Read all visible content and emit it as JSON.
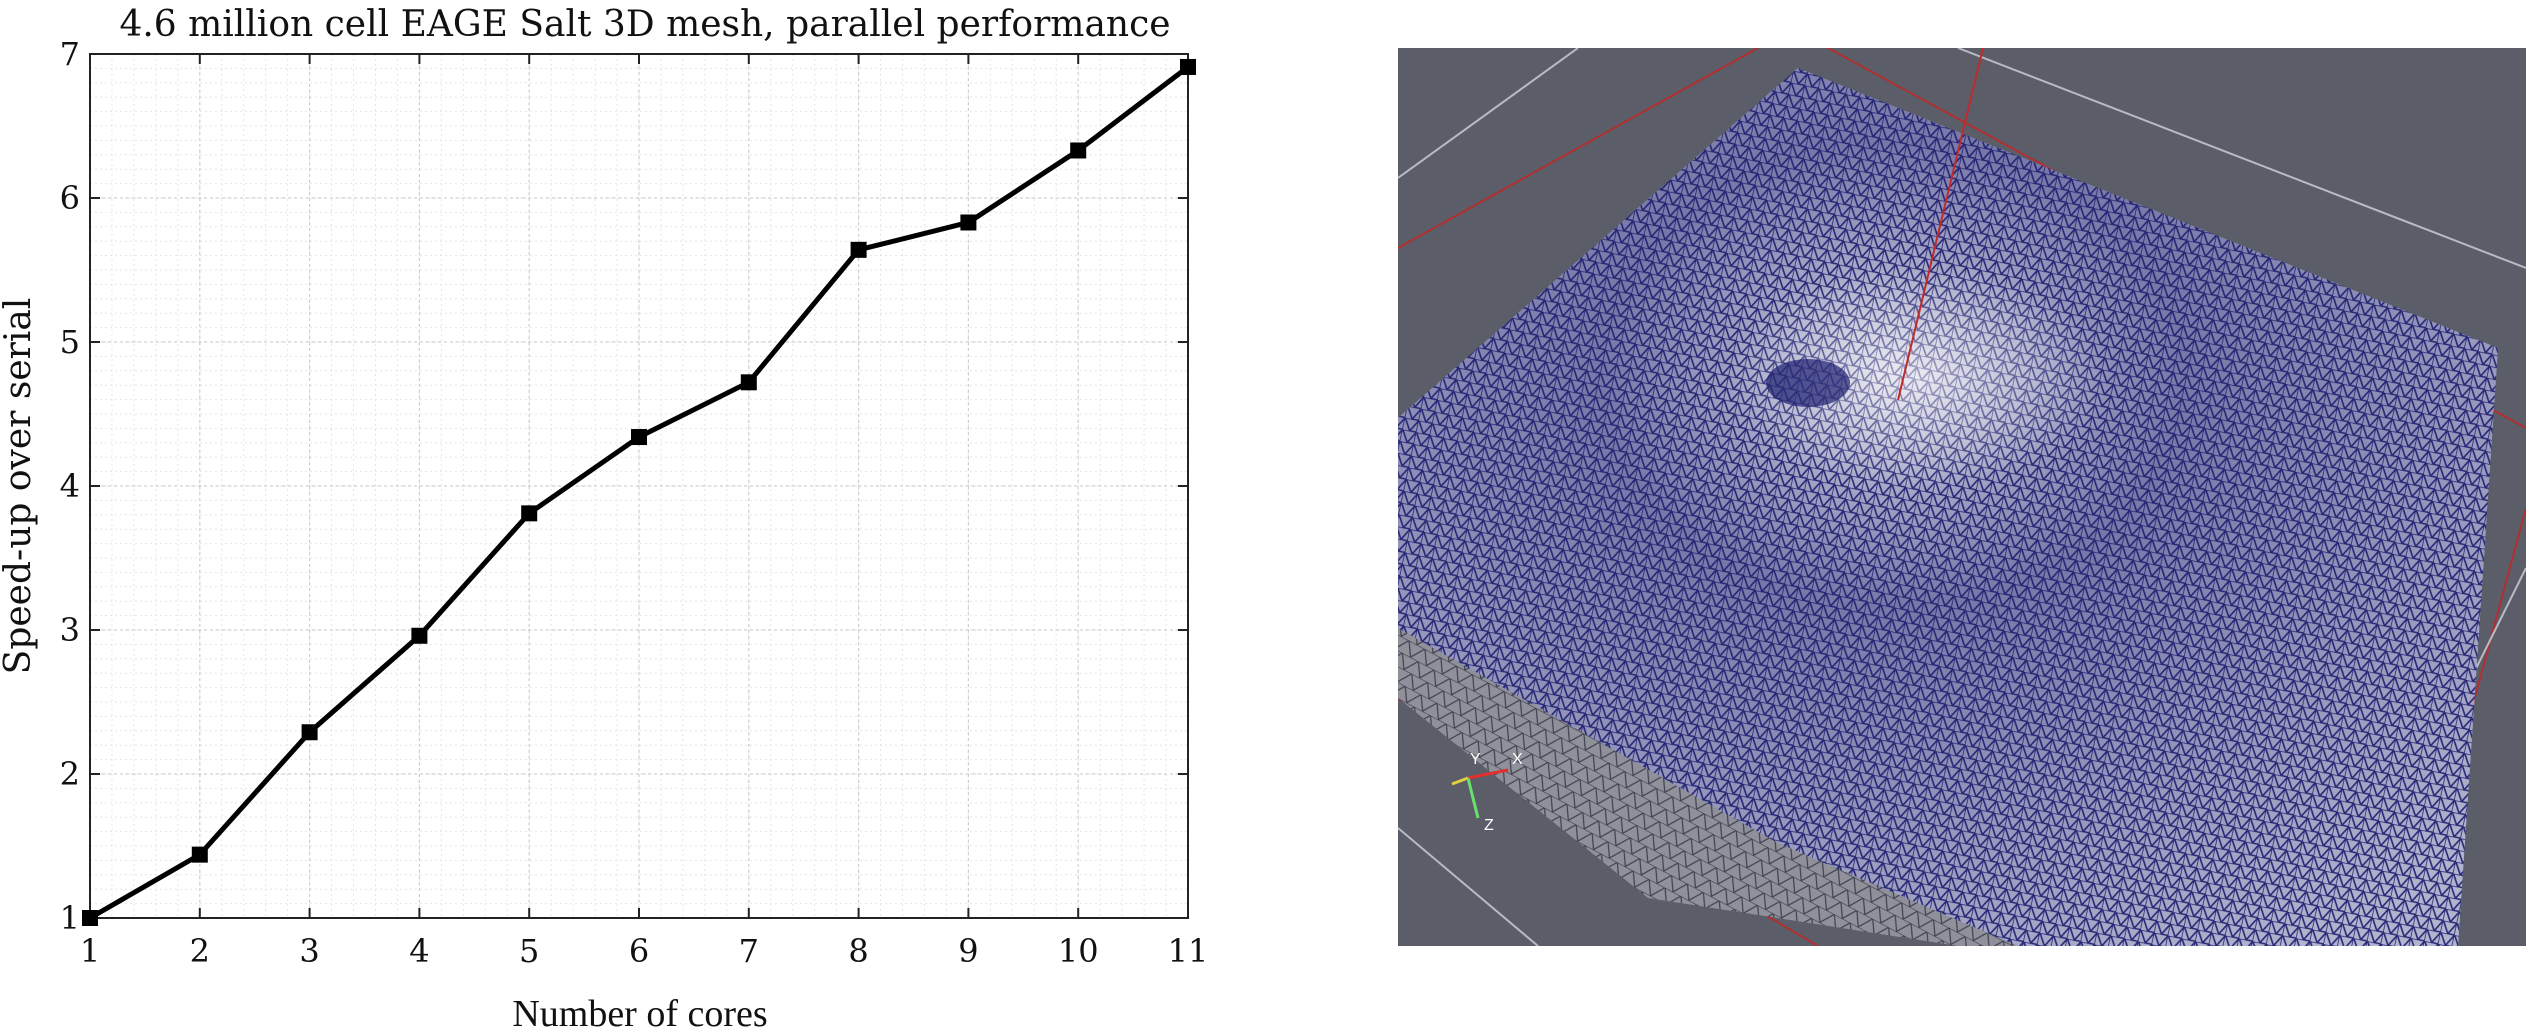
{
  "chart_data": {
    "type": "line",
    "title": "4.6 million cell EAGE Salt 3D mesh, parallel performance",
    "xlabel": "Number of cores",
    "ylabel": "Speed-up over serial",
    "x": [
      1,
      2,
      3,
      4,
      5,
      6,
      7,
      8,
      9,
      10,
      11
    ],
    "series": [
      {
        "values": [
          1.0,
          1.44,
          2.29,
          2.96,
          3.81,
          4.34,
          4.72,
          5.64,
          5.83,
          6.33,
          6.91
        ]
      }
    ],
    "xlim": [
      1,
      11
    ],
    "ylim": [
      1,
      7
    ],
    "xticks": [
      "1",
      "2",
      "3",
      "4",
      "5",
      "6",
      "7",
      "8",
      "9",
      "10",
      "11"
    ],
    "yticks": [
      "1",
      "2",
      "3",
      "4",
      "5",
      "6",
      "7"
    ],
    "grid": true,
    "minor_grid": true,
    "line_color": "#000000",
    "marker": "square"
  },
  "mesh_view": {
    "axis_labels": {
      "x": "X",
      "y": "Y",
      "z": "Z"
    },
    "background_color": "#5b5d68",
    "mesh_color": "#23236e",
    "guide_line_color": "#c02a2a"
  }
}
